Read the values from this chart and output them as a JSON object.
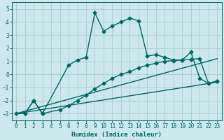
{
  "xlabel": "Humidex (Indice chaleur)",
  "background_color": "#cce8ec",
  "grid_color": "#aacccc",
  "line_color": "#006666",
  "xlim": [
    -0.5,
    23.5
  ],
  "ylim": [
    -3.5,
    5.5
  ],
  "yticks": [
    -3,
    -2,
    -1,
    0,
    1,
    2,
    3,
    4,
    5
  ],
  "xticks": [
    0,
    1,
    2,
    3,
    4,
    5,
    6,
    7,
    8,
    9,
    10,
    11,
    12,
    13,
    14,
    15,
    16,
    17,
    18,
    19,
    20,
    21,
    22,
    23
  ],
  "curve1_x": [
    1,
    2,
    3,
    6,
    7,
    8,
    9,
    10,
    11,
    12,
    13,
    14,
    15,
    16,
    17,
    18,
    19,
    20,
    21,
    22,
    23
  ],
  "curve1_y": [
    -3.0,
    -2.0,
    -3.0,
    0.7,
    1.1,
    1.3,
    4.7,
    3.3,
    3.7,
    4.0,
    4.3,
    4.1,
    1.4,
    1.5,
    1.3,
    1.1,
    1.1,
    1.7,
    -0.3,
    -0.7,
    -0.5
  ],
  "curve2_x": [
    0,
    1,
    2,
    3,
    5,
    6,
    7,
    8,
    9,
    10,
    11,
    12,
    13,
    14,
    15,
    16,
    17,
    18,
    19,
    20,
    21,
    22,
    23
  ],
  "curve2_y": [
    -3.0,
    -3.0,
    -2.0,
    -3.0,
    -2.7,
    -2.4,
    -2.0,
    -1.6,
    -1.1,
    -0.7,
    -0.3,
    0.0,
    0.2,
    0.5,
    0.7,
    0.85,
    1.0,
    1.05,
    1.1,
    1.15,
    1.2,
    -0.7,
    -0.5
  ],
  "line1_x": [
    0,
    23
  ],
  "line1_y": [
    -3.0,
    -0.6
  ],
  "line2_x": [
    0,
    23
  ],
  "line2_y": [
    -3.0,
    1.2
  ],
  "marker": "D",
  "markersize": 2.5,
  "linewidth": 1.0
}
